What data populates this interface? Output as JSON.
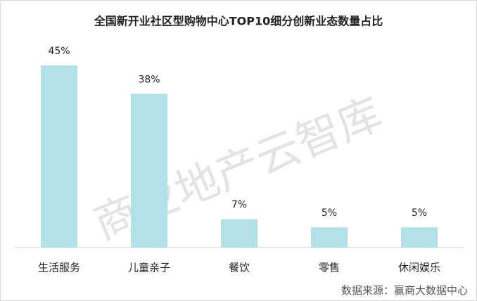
{
  "chart_data": {
    "type": "bar",
    "title": "全国新开业社区型购物中心TOP10细分创新业态数量占比",
    "categories": [
      "生活服务",
      "儿童亲子",
      "餐饮",
      "零售",
      "休闲娱乐"
    ],
    "values": [
      45,
      38,
      7,
      5,
      5
    ],
    "value_labels": [
      "45%",
      "38%",
      "7%",
      "5%",
      "5%"
    ],
    "color": "#b4e0e7",
    "watermark": "商业地产云智库",
    "source": "数据来源：赢商大数据中心"
  }
}
